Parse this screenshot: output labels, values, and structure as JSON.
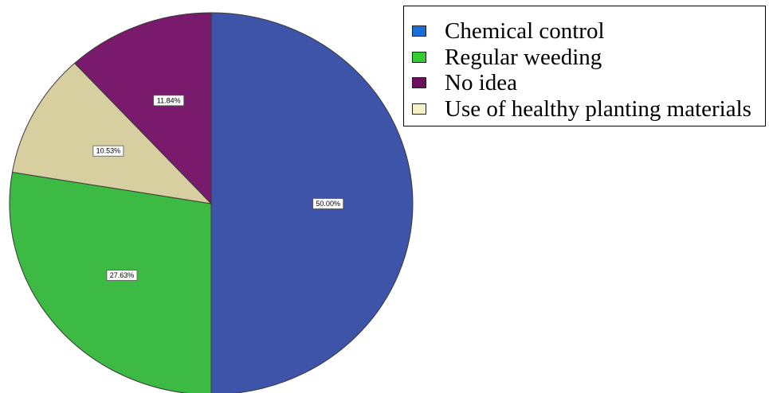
{
  "chart_data": {
    "type": "pie",
    "title": "",
    "slices": [
      {
        "label": "Chemical control",
        "value": 50.0,
        "display": "50.00%",
        "color": "#3d54a8"
      },
      {
        "label": "Regular weeding",
        "value": 27.63,
        "display": "27.63%",
        "color": "#3cba44"
      },
      {
        "label": "Use of healthy planting materials",
        "value": 10.53,
        "display": "10.53%",
        "color": "#d8cfa0"
      },
      {
        "label": "No idea",
        "value": 11.84,
        "display": "11.84%",
        "color": "#7a1a6c"
      }
    ],
    "legend": {
      "placement": "top-right",
      "entries": [
        {
          "label": "Chemical control",
          "color": "#1a6fd6"
        },
        {
          "label": "Regular weeding",
          "color": "#33cc33"
        },
        {
          "label": "No idea",
          "color": "#6b0f62"
        },
        {
          "label": "Use of healthy planting materials",
          "color": "#f7f1c6"
        }
      ]
    }
  }
}
